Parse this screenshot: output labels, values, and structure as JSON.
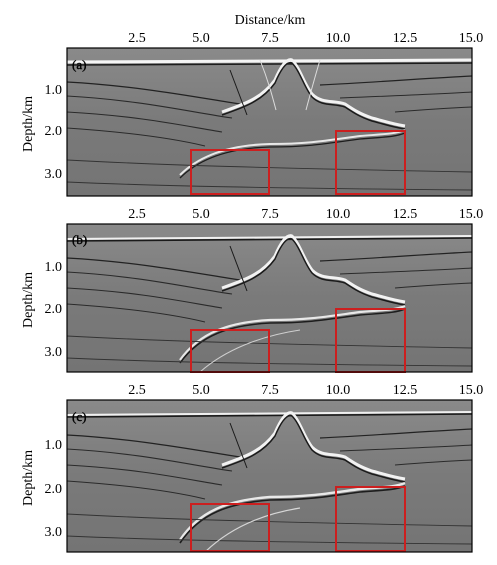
{
  "figure": {
    "x_axis_title": "Distance/km",
    "y_axis_title": "Depth/km",
    "x_ticks": [
      "2.5",
      "5.0",
      "7.5",
      "10.0",
      "12.5",
      "15.0"
    ],
    "x_range_km": [
      0,
      15
    ],
    "panels": [
      {
        "label": "(a)",
        "y_ticks": [
          "1.0",
          "2.0",
          "3.0"
        ],
        "depth_range_km": [
          0,
          3.5
        ]
      },
      {
        "label": "(b)",
        "y_ticks": [
          "1.0",
          "2.0",
          "3.0"
        ],
        "depth_range_km": [
          0,
          3.5
        ]
      },
      {
        "label": "(c)",
        "y_ticks": [
          "1.0",
          "2.0",
          "3.0"
        ],
        "depth_range_km": [
          0,
          3.5
        ]
      }
    ],
    "highlight_boxes_km": [
      {
        "x": [
          4.7,
          7.5
        ],
        "depth": [
          2.4,
          3.5
        ]
      },
      {
        "x": [
          10.0,
          12.5
        ],
        "depth": [
          1.95,
          3.5
        ]
      }
    ],
    "colors": {
      "box": "#cc1f1f",
      "background": "#7c7c7c",
      "reflector": "#1a1a1a",
      "highlight": "#f2f2f2"
    }
  }
}
